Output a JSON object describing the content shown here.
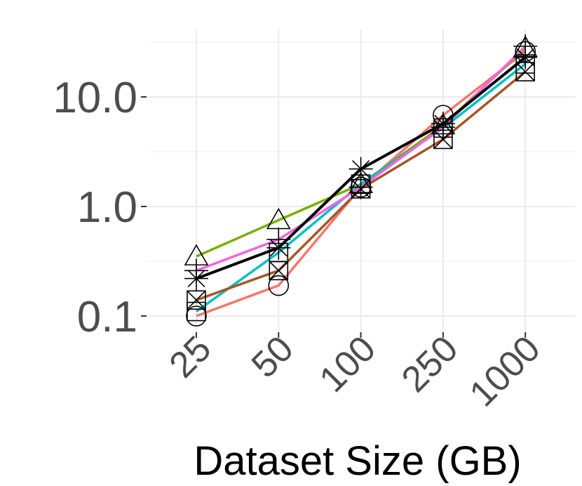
{
  "chart_data": {
    "type": "line",
    "title": "",
    "xlabel": "Dataset Size (GB)",
    "ylabel": "",
    "x_scale": "categorical",
    "y_scale": "log10",
    "categories": [
      "25",
      "50",
      "100",
      "250",
      "1000"
    ],
    "ylim": [
      0.07,
      45
    ],
    "yticks": [
      0.1,
      1.0,
      10.0
    ],
    "ytick_labels": [
      "0.1",
      "1.0",
      "10.0"
    ],
    "grid": true,
    "legend": "none",
    "series": [
      {
        "color": "#F8766D",
        "marker": "circle",
        "values": [
          0.1,
          0.19,
          1.5,
          6.8,
          26
        ]
      },
      {
        "color": "#7CAE00",
        "marker": "triangle",
        "values": [
          0.35,
          0.75,
          1.6,
          5.5,
          28
        ]
      },
      {
        "color": "#00BFC4",
        "marker": "square",
        "values": [
          0.11,
          0.38,
          1.6,
          5.2,
          20
        ]
      },
      {
        "color": "#A65628",
        "marker": "boxx",
        "values": [
          0.14,
          0.26,
          1.45,
          4.1,
          17
        ]
      },
      {
        "color": "#F564E3",
        "marker": "plus",
        "values": [
          0.26,
          0.5,
          1.5,
          5.3,
          29
        ]
      },
      {
        "color": "#000000",
        "marker": "asterisk",
        "values": [
          0.22,
          0.42,
          2.2,
          5.7,
          23
        ]
      }
    ]
  }
}
